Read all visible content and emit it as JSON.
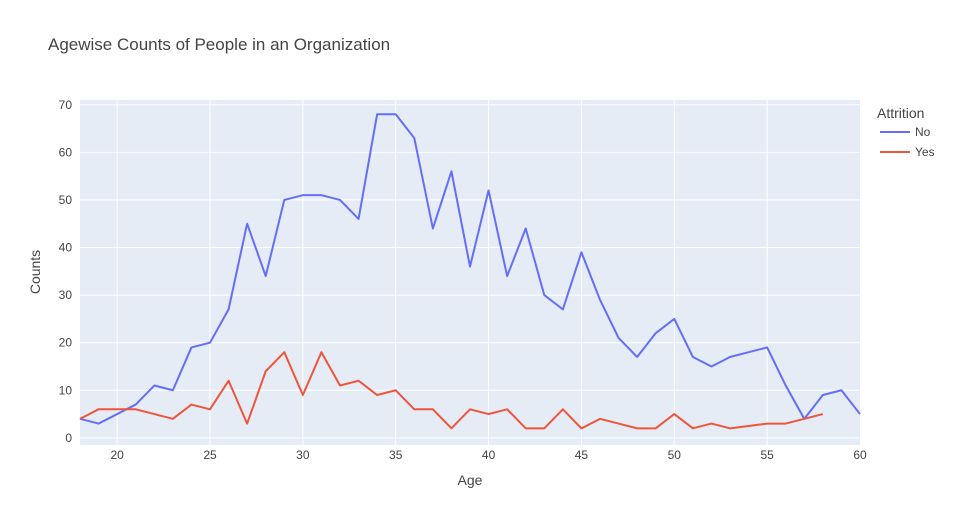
{
  "colors": {
    "plot_bg": "#E5ECF6",
    "grid": "#FFFFFF",
    "text": "#444444",
    "series_no": "#636EFA",
    "series_yes": "#EF553B"
  },
  "chart_data": {
    "type": "line",
    "title": "Agewise Counts of People in an Organization",
    "xlabel": "Age",
    "ylabel": "Counts",
    "xlim": [
      18,
      60
    ],
    "ylim": [
      -1.5,
      71
    ],
    "xticks": [
      20,
      25,
      30,
      35,
      40,
      45,
      50,
      55,
      60
    ],
    "yticks": [
      0,
      10,
      20,
      30,
      40,
      50,
      60,
      70
    ],
    "grid": true,
    "legend": {
      "title": "Attrition",
      "position": "right"
    },
    "series": [
      {
        "name": "No",
        "color": "#636EFA",
        "x": [
          18,
          19,
          20,
          21,
          22,
          23,
          24,
          25,
          26,
          27,
          28,
          29,
          30,
          31,
          32,
          33,
          34,
          35,
          36,
          37,
          38,
          39,
          40,
          41,
          42,
          43,
          44,
          45,
          46,
          47,
          48,
          49,
          50,
          51,
          52,
          53,
          54,
          55,
          56,
          57,
          58,
          59,
          60
        ],
        "y": [
          4,
          3,
          5,
          7,
          11,
          10,
          19,
          20,
          27,
          45,
          34,
          50,
          51,
          51,
          50,
          46,
          68,
          68,
          63,
          44,
          56,
          36,
          52,
          34,
          44,
          30,
          27,
          39,
          29,
          21,
          17,
          22,
          25,
          17,
          15,
          17,
          18,
          19,
          11,
          4,
          9,
          10,
          5
        ]
      },
      {
        "name": "Yes",
        "color": "#EF553B",
        "x": [
          18,
          19,
          20,
          21,
          22,
          23,
          24,
          25,
          26,
          27,
          28,
          29,
          30,
          31,
          32,
          33,
          34,
          35,
          36,
          37,
          38,
          39,
          40,
          41,
          42,
          43,
          44,
          45,
          46,
          47,
          48,
          49,
          50,
          51,
          52,
          53,
          54,
          55,
          56,
          57,
          58
        ],
        "y": [
          4,
          6,
          6,
          6,
          5,
          4,
          7,
          6,
          12,
          3,
          14,
          18,
          9,
          18,
          11,
          12,
          9,
          10,
          6,
          6,
          2,
          6,
          5,
          6,
          2,
          2,
          6,
          2,
          4,
          3,
          2,
          2,
          5,
          2,
          3,
          2,
          2.5,
          3,
          3,
          4,
          5
        ]
      }
    ]
  }
}
